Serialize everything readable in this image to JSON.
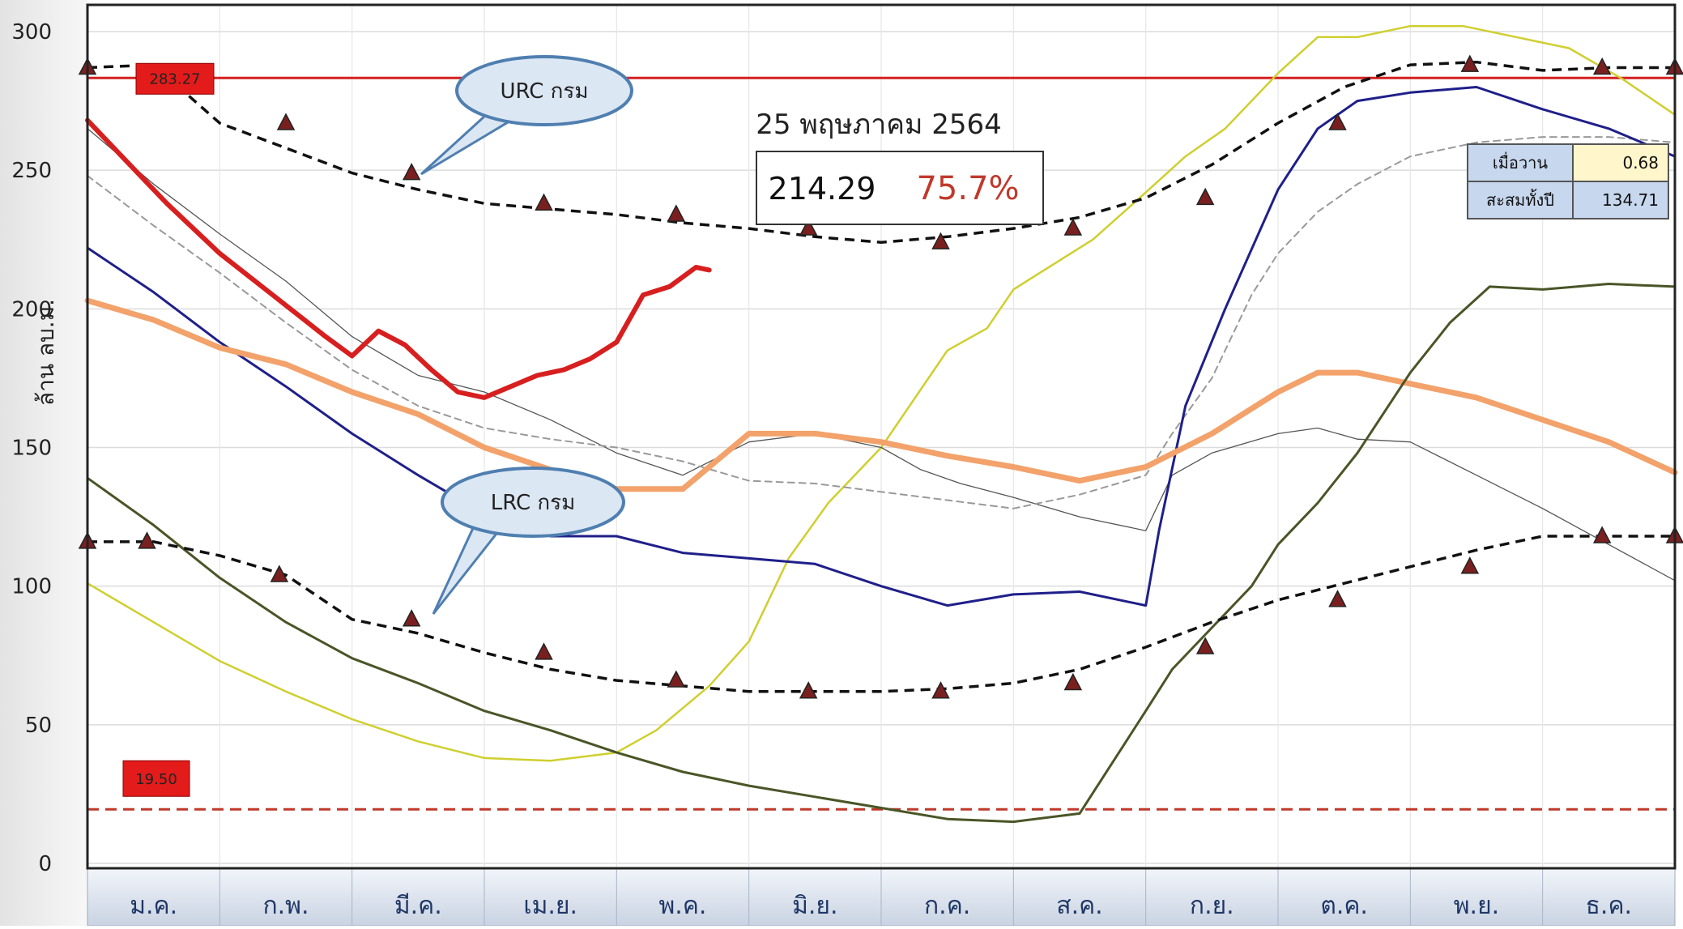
{
  "chart_data": {
    "type": "line",
    "ylabel": "ล้าน ลบ.ม.",
    "ylim": [
      0,
      300
    ],
    "y_ticks": [
      0,
      50,
      100,
      150,
      200,
      250,
      300
    ],
    "categories": [
      "ม.ค.",
      "ก.พ.",
      "มี.ค.",
      "เม.ย.",
      "พ.ค.",
      "มิ.ย.",
      "ก.ค.",
      "ส.ค.",
      "ก.ย.",
      "ต.ค.",
      "พ.ย.",
      "ธ.ค."
    ],
    "date_label": "25 พฤษภาคม 2564",
    "current_volume": "214.29",
    "current_percent": "75.7%",
    "upper_ref": {
      "label": "283.27",
      "value": 283.27,
      "color": "#d42020"
    },
    "lower_ref": {
      "label": "19.50",
      "value": 19.5,
      "color": "#c0392b"
    },
    "callouts": [
      {
        "text": "URC กรม",
        "target": "urc"
      },
      {
        "text": "LRC กรม",
        "target": "lrc"
      }
    ],
    "info_table": [
      {
        "label": "เมื่อวาน",
        "value": "0.68"
      },
      {
        "label": "สะสมทั้งปี",
        "value": "134.71"
      }
    ],
    "urc": {
      "color": "#111111",
      "x": [
        0,
        0.5,
        1.0,
        1.5,
        2.0,
        2.5,
        3.0,
        3.5,
        4.0,
        4.5,
        5.0,
        5.5,
        6.0,
        6.5,
        7.0,
        7.5,
        8.0,
        8.5,
        9.0,
        9.5,
        10.0,
        10.5,
        11.0,
        11.5,
        12.0
      ],
      "y": [
        287,
        288,
        267,
        258,
        249,
        243,
        238,
        236,
        234,
        231,
        229,
        226,
        224,
        226,
        229,
        233,
        240,
        252,
        267,
        280,
        288,
        289,
        286,
        287,
        287
      ],
      "markers_x": [
        0,
        1.5,
        2.45,
        3.45,
        4.45,
        5.45,
        6.45,
        7.45,
        8.45,
        9.45,
        10.45,
        11.45,
        12.0
      ],
      "markers_y": [
        287,
        267,
        249,
        238,
        234,
        229,
        224,
        229,
        240,
        267,
        288,
        287,
        287
      ]
    },
    "lrc": {
      "color": "#111111",
      "x": [
        0,
        0.5,
        1.0,
        1.5,
        2.0,
        2.5,
        3.0,
        3.5,
        4.0,
        4.5,
        5.0,
        5.5,
        6.0,
        6.5,
        7.0,
        7.5,
        8.0,
        8.5,
        9.0,
        9.5,
        10.0,
        10.5,
        11.0,
        11.5,
        12.0
      ],
      "y": [
        116,
        116,
        111,
        104,
        88,
        83,
        76,
        70,
        66,
        64,
        62,
        62,
        62,
        63,
        65,
        70,
        78,
        87,
        95,
        101,
        107,
        113,
        118,
        118,
        118
      ],
      "markers_x": [
        0,
        0.45,
        1.45,
        2.45,
        3.45,
        4.45,
        5.45,
        6.45,
        7.45,
        8.45,
        9.45,
        10.45,
        11.45,
        12.0
      ],
      "markers_y": [
        116,
        116,
        104,
        88,
        76,
        66,
        62,
        62,
        65,
        78,
        95,
        107,
        118,
        118
      ]
    },
    "series": [
      {
        "color": "#cfcf30",
        "width": 2.5,
        "dash": "",
        "x": [
          0,
          0.5,
          1.0,
          1.5,
          2.0,
          2.5,
          3.0,
          3.5,
          4.0,
          4.3,
          4.7,
          5.0,
          5.3,
          5.6,
          6.0,
          6.5,
          6.8,
          7.0,
          7.3,
          7.6,
          8.0,
          8.3,
          8.6,
          9.0,
          9.3,
          9.6,
          10.0,
          10.4,
          10.8,
          11.2,
          11.6,
          12.0
        ],
        "y": [
          101,
          87,
          73,
          62,
          52,
          44,
          38,
          37,
          40,
          48,
          64,
          80,
          110,
          130,
          150,
          185,
          193,
          207,
          216,
          225,
          242,
          255,
          265,
          285,
          298,
          298,
          302,
          302,
          298,
          294,
          283,
          270
        ]
      },
      {
        "color": "#555555",
        "width": 1.3,
        "dash": "",
        "x": [
          0,
          0.5,
          1.0,
          1.5,
          2.0,
          2.5,
          3.0,
          3.5,
          4.0,
          4.5,
          5.0,
          5.5,
          6.0,
          6.3,
          6.6,
          7.0,
          7.5,
          8.0,
          8.2,
          8.5,
          9.0,
          9.3,
          9.6,
          10.0,
          10.5,
          11.0,
          11.5,
          12.0
        ],
        "y": [
          265,
          245,
          227,
          210,
          190,
          176,
          170,
          160,
          148,
          140,
          152,
          155,
          150,
          142,
          137,
          132,
          125,
          120,
          140,
          148,
          155,
          157,
          153,
          152,
          140,
          128,
          115,
          102
        ]
      },
      {
        "color": "#999999",
        "width": 2,
        "dash": "8,6",
        "x": [
          0,
          0.5,
          1.0,
          1.5,
          2.0,
          2.5,
          3.0,
          3.5,
          4.0,
          4.5,
          5.0,
          5.5,
          6.0,
          6.5,
          7.0,
          7.5,
          8.0,
          8.2,
          8.5,
          8.8,
          9.0,
          9.3,
          9.6,
          10.0,
          10.5,
          11.0,
          11.5,
          12.0
        ],
        "y": [
          248,
          230,
          213,
          195,
          178,
          165,
          157,
          153,
          150,
          145,
          138,
          137,
          134,
          131,
          128,
          133,
          140,
          155,
          175,
          205,
          220,
          235,
          245,
          255,
          260,
          262,
          262,
          260
        ]
      },
      {
        "color": "#1f1f8a",
        "width": 3,
        "dash": "",
        "x": [
          0,
          0.5,
          1.0,
          1.5,
          2.0,
          2.5,
          3.0,
          3.5,
          4.0,
          4.5,
          5.0,
          5.5,
          6.0,
          6.5,
          7.0,
          7.5,
          8.0,
          8.1,
          8.3,
          8.6,
          9.0,
          9.3,
          9.6,
          10.0,
          10.5,
          11.0,
          11.5,
          12.0
        ],
        "y": [
          222,
          206,
          188,
          172,
          155,
          140,
          126,
          118,
          118,
          112,
          110,
          108,
          100,
          93,
          97,
          98,
          93,
          120,
          165,
          200,
          243,
          265,
          275,
          278,
          280,
          272,
          265,
          255
        ]
      },
      {
        "color": "#f2a26a",
        "width": 7,
        "dash": "",
        "x": [
          0,
          0.5,
          1.0,
          1.5,
          2.0,
          2.5,
          3.0,
          3.5,
          4.0,
          4.5,
          5.0,
          5.5,
          6.0,
          6.5,
          7.0,
          7.5,
          8.0,
          8.5,
          9.0,
          9.3,
          9.6,
          10.0,
          10.5,
          11.0,
          11.5,
          12.0
        ],
        "y": [
          203,
          196,
          186,
          180,
          170,
          162,
          150,
          142,
          135,
          135,
          155,
          155,
          152,
          147,
          143,
          138,
          143,
          155,
          170,
          177,
          177,
          173,
          168,
          160,
          152,
          141
        ]
      },
      {
        "color": "#4a5527",
        "width": 3,
        "dash": "",
        "x": [
          0,
          0.5,
          1.0,
          1.5,
          2.0,
          2.5,
          3.0,
          3.5,
          4.0,
          4.5,
          5.0,
          5.5,
          6.0,
          6.5,
          7.0,
          7.5,
          8.0,
          8.2,
          8.5,
          8.8,
          9.0,
          9.3,
          9.6,
          10.0,
          10.3,
          10.6,
          11.0,
          11.5,
          12.0
        ],
        "y": [
          139,
          122,
          103,
          87,
          74,
          65,
          55,
          48,
          40,
          33,
          28,
          24,
          20,
          16,
          15,
          18,
          55,
          70,
          85,
          100,
          115,
          130,
          148,
          177,
          195,
          208,
          207,
          209,
          208
        ]
      },
      {
        "color": "#d81f1f",
        "width": 6,
        "dash": "",
        "x": [
          0,
          0.3,
          0.6,
          1.0,
          1.4,
          1.8,
          2.0,
          2.2,
          2.4,
          2.6,
          2.8,
          3.0,
          3.2,
          3.4,
          3.6,
          3.8,
          4.0,
          4.2,
          4.4,
          4.6,
          4.7
        ],
        "y": [
          268,
          253,
          238,
          220,
          205,
          190,
          183,
          192,
          187,
          178,
          170,
          168,
          172,
          176,
          178,
          182,
          188,
          205,
          208,
          215,
          214
        ]
      }
    ]
  }
}
